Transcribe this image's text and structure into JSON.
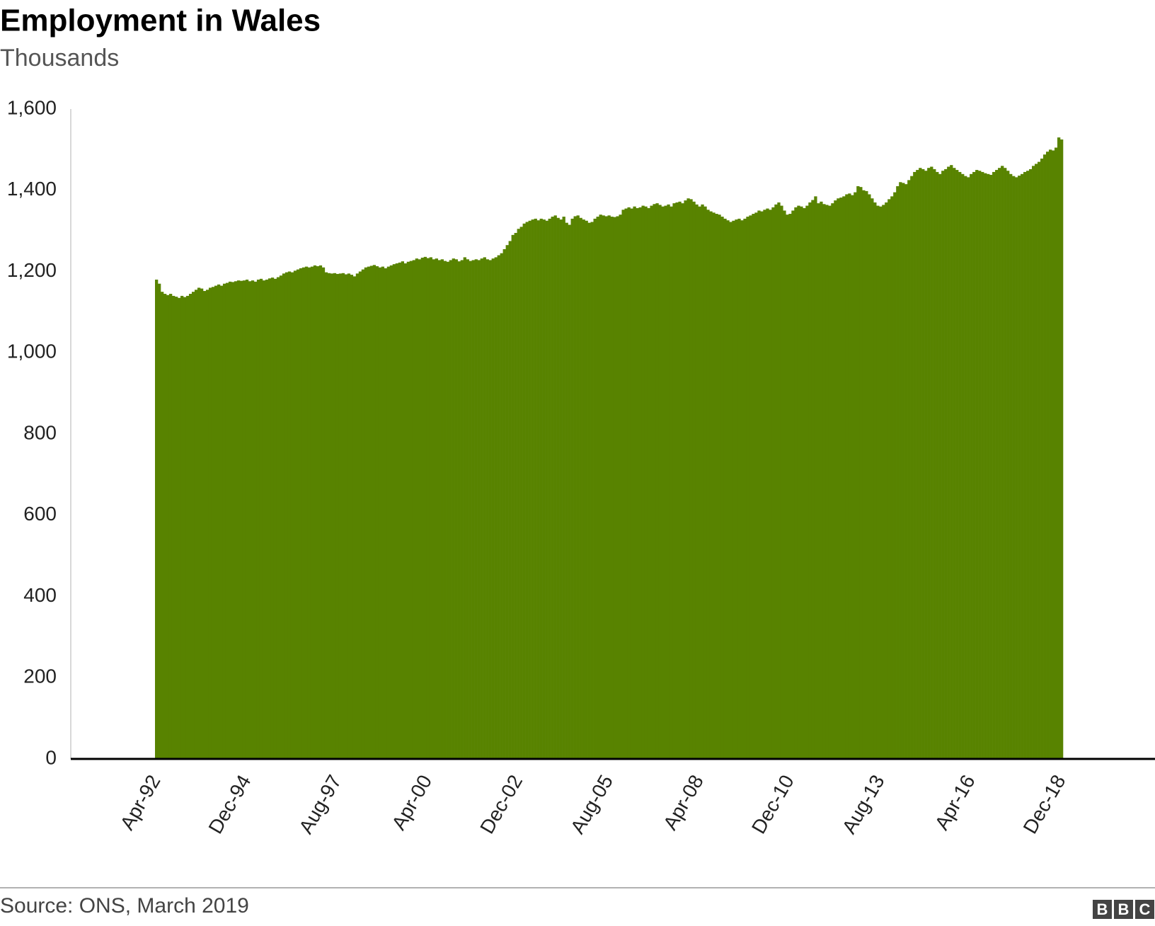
{
  "chart_data": {
    "type": "bar",
    "title": "Employment in Wales",
    "subtitle": "Thousands",
    "source": "Source: ONS, March 2019",
    "logo": [
      "B",
      "B",
      "C"
    ],
    "color": "#588300",
    "grid": false,
    "ylim": [
      0,
      1600
    ],
    "yticks": [
      0,
      200,
      400,
      600,
      800,
      {
        "value": 1000,
        "label": "1,000"
      },
      {
        "value": 1200,
        "label": "1,200"
      },
      {
        "value": 1400,
        "label": "1,400"
      },
      {
        "value": 1600,
        "label": "1,600"
      }
    ],
    "categories": [
      "Apr-92",
      null,
      null,
      null,
      null,
      null,
      null,
      null,
      null,
      null,
      null,
      null,
      null,
      null,
      null,
      null,
      null,
      null,
      null,
      null,
      null,
      null,
      null,
      null,
      null,
      null,
      null,
      null,
      null,
      null,
      null,
      null,
      "Dec-94",
      null,
      null,
      null,
      null,
      null,
      null,
      null,
      null,
      null,
      null,
      null,
      null,
      null,
      null,
      null,
      null,
      null,
      null,
      null,
      null,
      null,
      null,
      null,
      null,
      null,
      null,
      null,
      null,
      null,
      null,
      null,
      "Aug-97",
      null,
      null,
      null,
      null,
      null,
      null,
      null,
      null,
      null,
      null,
      null,
      null,
      null,
      null,
      null,
      null,
      null,
      null,
      null,
      null,
      null,
      null,
      null,
      null,
      null,
      null,
      null,
      null,
      null,
      null,
      null,
      "Apr-00",
      null,
      null,
      null,
      null,
      null,
      null,
      null,
      null,
      null,
      null,
      null,
      null,
      null,
      null,
      null,
      null,
      null,
      null,
      null,
      null,
      null,
      null,
      null,
      null,
      null,
      null,
      null,
      null,
      null,
      null,
      null,
      "Dec-02",
      null,
      null,
      null,
      null,
      null,
      null,
      null,
      null,
      null,
      null,
      null,
      null,
      null,
      null,
      null,
      null,
      null,
      null,
      null,
      null,
      null,
      null,
      null,
      null,
      null,
      null,
      null,
      null,
      null,
      null,
      null,
      "Aug-05",
      null,
      null,
      null,
      null,
      null,
      null,
      null,
      null,
      null,
      null,
      null,
      null,
      null,
      null,
      null,
      null,
      null,
      null,
      null,
      null,
      null,
      null,
      null,
      null,
      null,
      null,
      null,
      null,
      null,
      null,
      null,
      "Apr-08",
      null,
      null,
      null,
      null,
      null,
      null,
      null,
      null,
      null,
      null,
      null,
      null,
      null,
      null,
      null,
      null,
      null,
      null,
      null,
      null,
      null,
      null,
      null,
      null,
      null,
      null,
      null,
      null,
      null,
      null,
      null,
      "Dec-10",
      null,
      null,
      null,
      null,
      null,
      null,
      null,
      null,
      null,
      null,
      null,
      null,
      null,
      null,
      null,
      null,
      null,
      null,
      null,
      null,
      null,
      null,
      null,
      null,
      null,
      null,
      null,
      null,
      null,
      null,
      null,
      "Aug-13",
      null,
      null,
      null,
      null,
      null,
      null,
      null,
      null,
      null,
      null,
      null,
      null,
      null,
      null,
      null,
      null,
      null,
      null,
      null,
      null,
      null,
      null,
      null,
      null,
      null,
      null,
      null,
      null,
      null,
      null,
      null,
      "Apr-16",
      null,
      null,
      null,
      null,
      null,
      null,
      null,
      null,
      null,
      null,
      null,
      null,
      null,
      null,
      null,
      null,
      null,
      null,
      null,
      null,
      null,
      null,
      null,
      null,
      null,
      null,
      null,
      null,
      null,
      null,
      null,
      "Dec-18"
    ],
    "values": [
      1180,
      1170,
      1150,
      1145,
      1142,
      1145,
      1140,
      1138,
      1135,
      1140,
      1137,
      1140,
      1145,
      1150,
      1155,
      1160,
      1158,
      1152,
      1155,
      1160,
      1162,
      1165,
      1168,
      1165,
      1170,
      1172,
      1175,
      1174,
      1176,
      1178,
      1177,
      1178,
      1180,
      1176,
      1178,
      1175,
      1180,
      1182,
      1178,
      1180,
      1183,
      1185,
      1182,
      1186,
      1190,
      1195,
      1198,
      1200,
      1198,
      1202,
      1205,
      1208,
      1210,
      1212,
      1210,
      1212,
      1215,
      1213,
      1215,
      1210,
      1198,
      1196,
      1195,
      1196,
      1194,
      1195,
      1196,
      1193,
      1195,
      1192,
      1188,
      1195,
      1200,
      1205,
      1210,
      1212,
      1214,
      1216,
      1213,
      1210,
      1212,
      1208,
      1212,
      1215,
      1218,
      1220,
      1222,
      1225,
      1220,
      1224,
      1226,
      1228,
      1232,
      1230,
      1234,
      1236,
      1233,
      1235,
      1230,
      1232,
      1228,
      1230,
      1226,
      1224,
      1228,
      1232,
      1230,
      1225,
      1228,
      1235,
      1230,
      1226,
      1228,
      1230,
      1228,
      1232,
      1235,
      1230,
      1228,
      1232,
      1235,
      1240,
      1245,
      1255,
      1265,
      1275,
      1290,
      1295,
      1305,
      1310,
      1318,
      1322,
      1325,
      1328,
      1330,
      1326,
      1330,
      1328,
      1325,
      1330,
      1335,
      1338,
      1332,
      1328,
      1335,
      1320,
      1315,
      1330,
      1336,
      1338,
      1332,
      1328,
      1325,
      1320,
      1322,
      1330,
      1335,
      1340,
      1338,
      1336,
      1338,
      1335,
      1334,
      1336,
      1340,
      1352,
      1355,
      1358,
      1355,
      1360,
      1356,
      1358,
      1362,
      1360,
      1356,
      1362,
      1366,
      1368,
      1364,
      1360,
      1362,
      1365,
      1360,
      1368,
      1370,
      1372,
      1368,
      1375,
      1380,
      1378,
      1372,
      1365,
      1360,
      1365,
      1360,
      1352,
      1348,
      1345,
      1342,
      1340,
      1335,
      1330,
      1326,
      1322,
      1325,
      1328,
      1330,
      1326,
      1330,
      1335,
      1338,
      1342,
      1345,
      1350,
      1348,
      1352,
      1355,
      1352,
      1358,
      1365,
      1370,
      1362,
      1350,
      1340,
      1342,
      1350,
      1358,
      1362,
      1360,
      1356,
      1362,
      1370,
      1376,
      1385,
      1368,
      1372,
      1366,
      1364,
      1362,
      1368,
      1375,
      1380,
      1382,
      1385,
      1390,
      1392,
      1388,
      1395,
      1410,
      1408,
      1400,
      1398,
      1390,
      1380,
      1370,
      1362,
      1360,
      1364,
      1370,
      1378,
      1385,
      1395,
      1410,
      1420,
      1418,
      1415,
      1425,
      1435,
      1445,
      1450,
      1455,
      1452,
      1448,
      1455,
      1458,
      1452,
      1445,
      1440,
      1448,
      1452,
      1458,
      1462,
      1455,
      1450,
      1445,
      1440,
      1435,
      1432,
      1440,
      1445,
      1450,
      1448,
      1445,
      1442,
      1440,
      1438,
      1445,
      1450,
      1455,
      1460,
      1455,
      1448,
      1440,
      1435,
      1432,
      1436,
      1440,
      1445,
      1448,
      1452,
      1460,
      1465,
      1470,
      1478,
      1488,
      1495,
      1500,
      1498,
      1505,
      1530,
      1525
    ]
  }
}
